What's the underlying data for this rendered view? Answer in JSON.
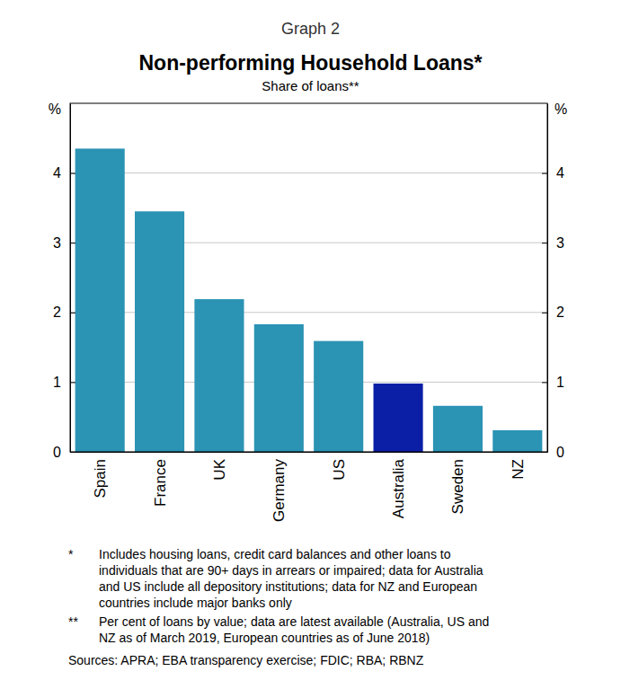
{
  "chart_data": {
    "type": "bar",
    "graph_label": "Graph 2",
    "title": "Non-performing Household Loans*",
    "subtitle": "Share of loans**",
    "ylabel": "%",
    "categories": [
      "Spain",
      "France",
      "UK",
      "Germany",
      "US",
      "Australia",
      "Sweden",
      "NZ"
    ],
    "values": [
      4.35,
      3.45,
      2.19,
      1.83,
      1.59,
      0.98,
      0.66,
      0.31
    ],
    "colors": [
      "#2b93b4",
      "#2b93b4",
      "#2b93b4",
      "#2b93b4",
      "#2b93b4",
      "#0a1fa6",
      "#2b93b4",
      "#2b93b4"
    ],
    "ylim": [
      0,
      5
    ],
    "yticks": [
      0,
      1,
      2,
      3,
      4
    ],
    "grid": true,
    "notes": [
      {
        "symbol": "*",
        "lines": [
          "Includes housing loans, credit card balances and other loans to",
          "individuals that are 90+ days in arrears or impaired; data for Australia",
          "and US include all depository institutions; data for NZ and European",
          "countries include major banks only"
        ]
      },
      {
        "symbol": "**",
        "lines": [
          "Per cent of loans by value; data are latest available (Australia, US and",
          "NZ as of March 2019, European countries as of June 2018)"
        ]
      }
    ],
    "source": "Sources: APRA; EBA transparency exercise; FDIC; RBA; RBNZ"
  }
}
